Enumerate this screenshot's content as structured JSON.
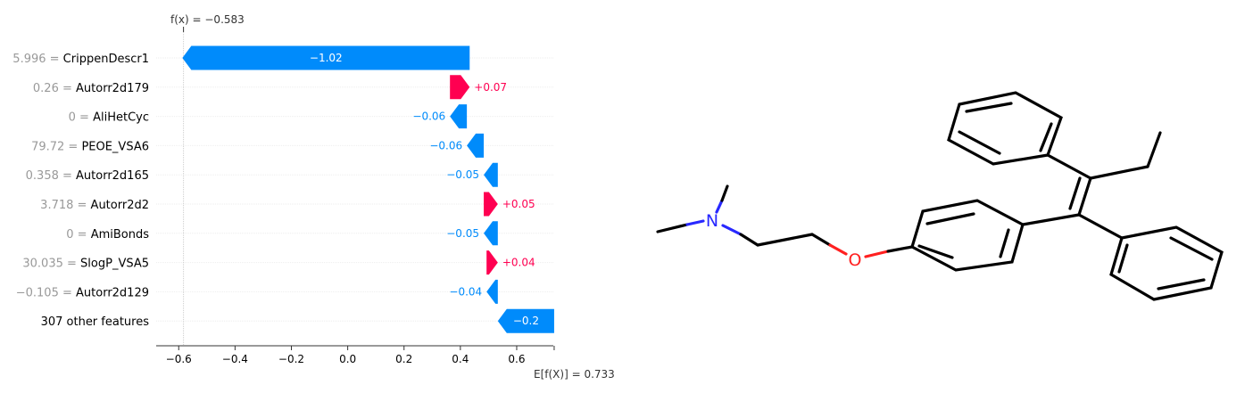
{
  "chart_data": {
    "type": "waterfall",
    "fx_label": "f(x) = −0.583",
    "ex_label": "E[f(X)] = 0.733",
    "fx": -0.583,
    "base_value": 0.733,
    "xlim": [
      -0.68,
      0.73
    ],
    "xticks": [
      "−0.6",
      "−0.4",
      "−0.2",
      "0.0",
      "0.2",
      "0.4",
      "0.6"
    ],
    "xtick_values": [
      -0.6,
      -0.4,
      -0.2,
      0.0,
      0.2,
      0.4,
      0.6
    ],
    "colors": {
      "positive": "#ff0051",
      "negative": "#008bfb"
    },
    "features": [
      {
        "value": "5.996",
        "name": "CrippenDescr1",
        "shap": -1.02,
        "label": "−1.02"
      },
      {
        "value": "0.26",
        "name": "Autorr2d179",
        "shap": 0.07,
        "label": "+0.07"
      },
      {
        "value": "0",
        "name": "AliHetCyc",
        "shap": -0.06,
        "label": "−0.06"
      },
      {
        "value": "79.72",
        "name": "PEOE_VSA6",
        "shap": -0.06,
        "label": "−0.06"
      },
      {
        "value": "0.358",
        "name": "Autorr2d165",
        "shap": -0.05,
        "label": "−0.05"
      },
      {
        "value": "3.718",
        "name": "Autorr2d2",
        "shap": 0.05,
        "label": "+0.05"
      },
      {
        "value": "0",
        "name": "AmiBonds",
        "shap": -0.05,
        "label": "−0.05"
      },
      {
        "value": "30.035",
        "name": "SlogP_VSA5",
        "shap": 0.04,
        "label": "+0.04"
      },
      {
        "value": "−0.105",
        "name": "Autorr2d129",
        "shap": -0.04,
        "label": "−0.04"
      },
      {
        "value": "",
        "name": "307 other features",
        "shap": -0.2,
        "label": "−0.2"
      }
    ]
  },
  "molecule": {
    "atom_labels": {
      "nitrogen": "N",
      "oxygen": "O"
    },
    "colors": {
      "bond": "#000000",
      "nitrogen": "#2828ff",
      "oxygen": "#ff2020"
    }
  }
}
